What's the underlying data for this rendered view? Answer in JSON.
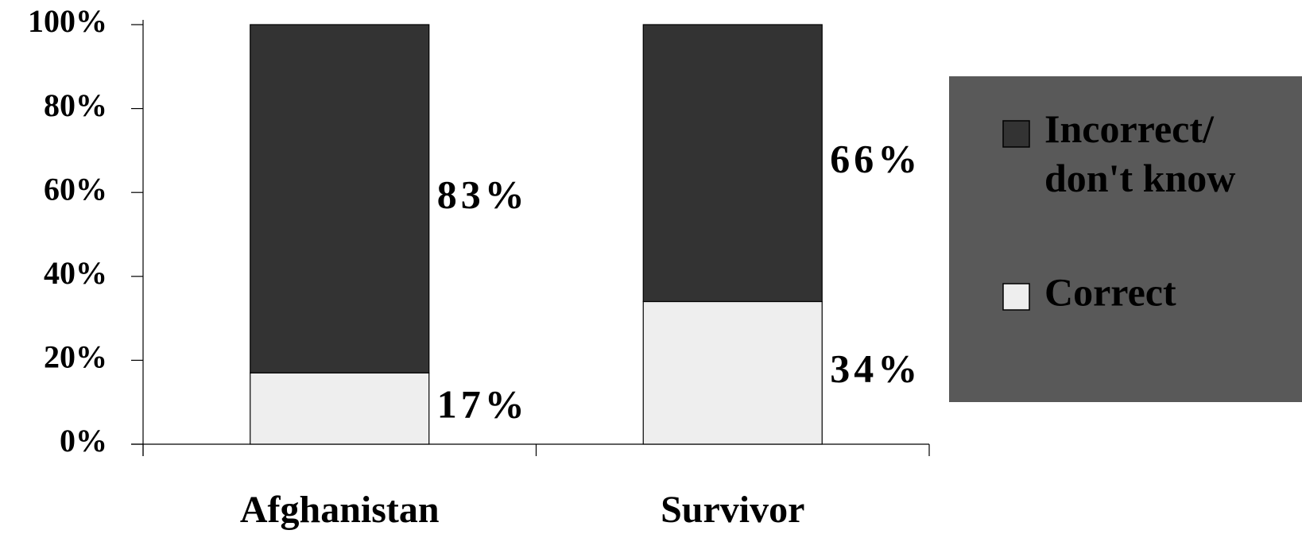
{
  "chart_data": {
    "type": "stacked_bar",
    "categories": [
      "Afghanistan",
      "Survivor"
    ],
    "series": [
      {
        "name": "Correct",
        "color": "#eeeeee",
        "values": [
          17,
          34
        ],
        "value_labels": [
          "17%",
          "34%"
        ]
      },
      {
        "name": "Incorrect/ don't know",
        "color": "#333333",
        "values": [
          83,
          66
        ],
        "value_labels": [
          "83%",
          "66%"
        ]
      }
    ],
    "ylim": [
      0,
      100
    ],
    "yticks": [
      {
        "value": 0,
        "label": "0%"
      },
      {
        "value": 20,
        "label": "20%"
      },
      {
        "value": 40,
        "label": "40%"
      },
      {
        "value": 60,
        "label": "60%"
      },
      {
        "value": 80,
        "label": "80%"
      },
      {
        "value": 100,
        "label": "100%"
      }
    ],
    "grid": false,
    "legend": "right"
  }
}
